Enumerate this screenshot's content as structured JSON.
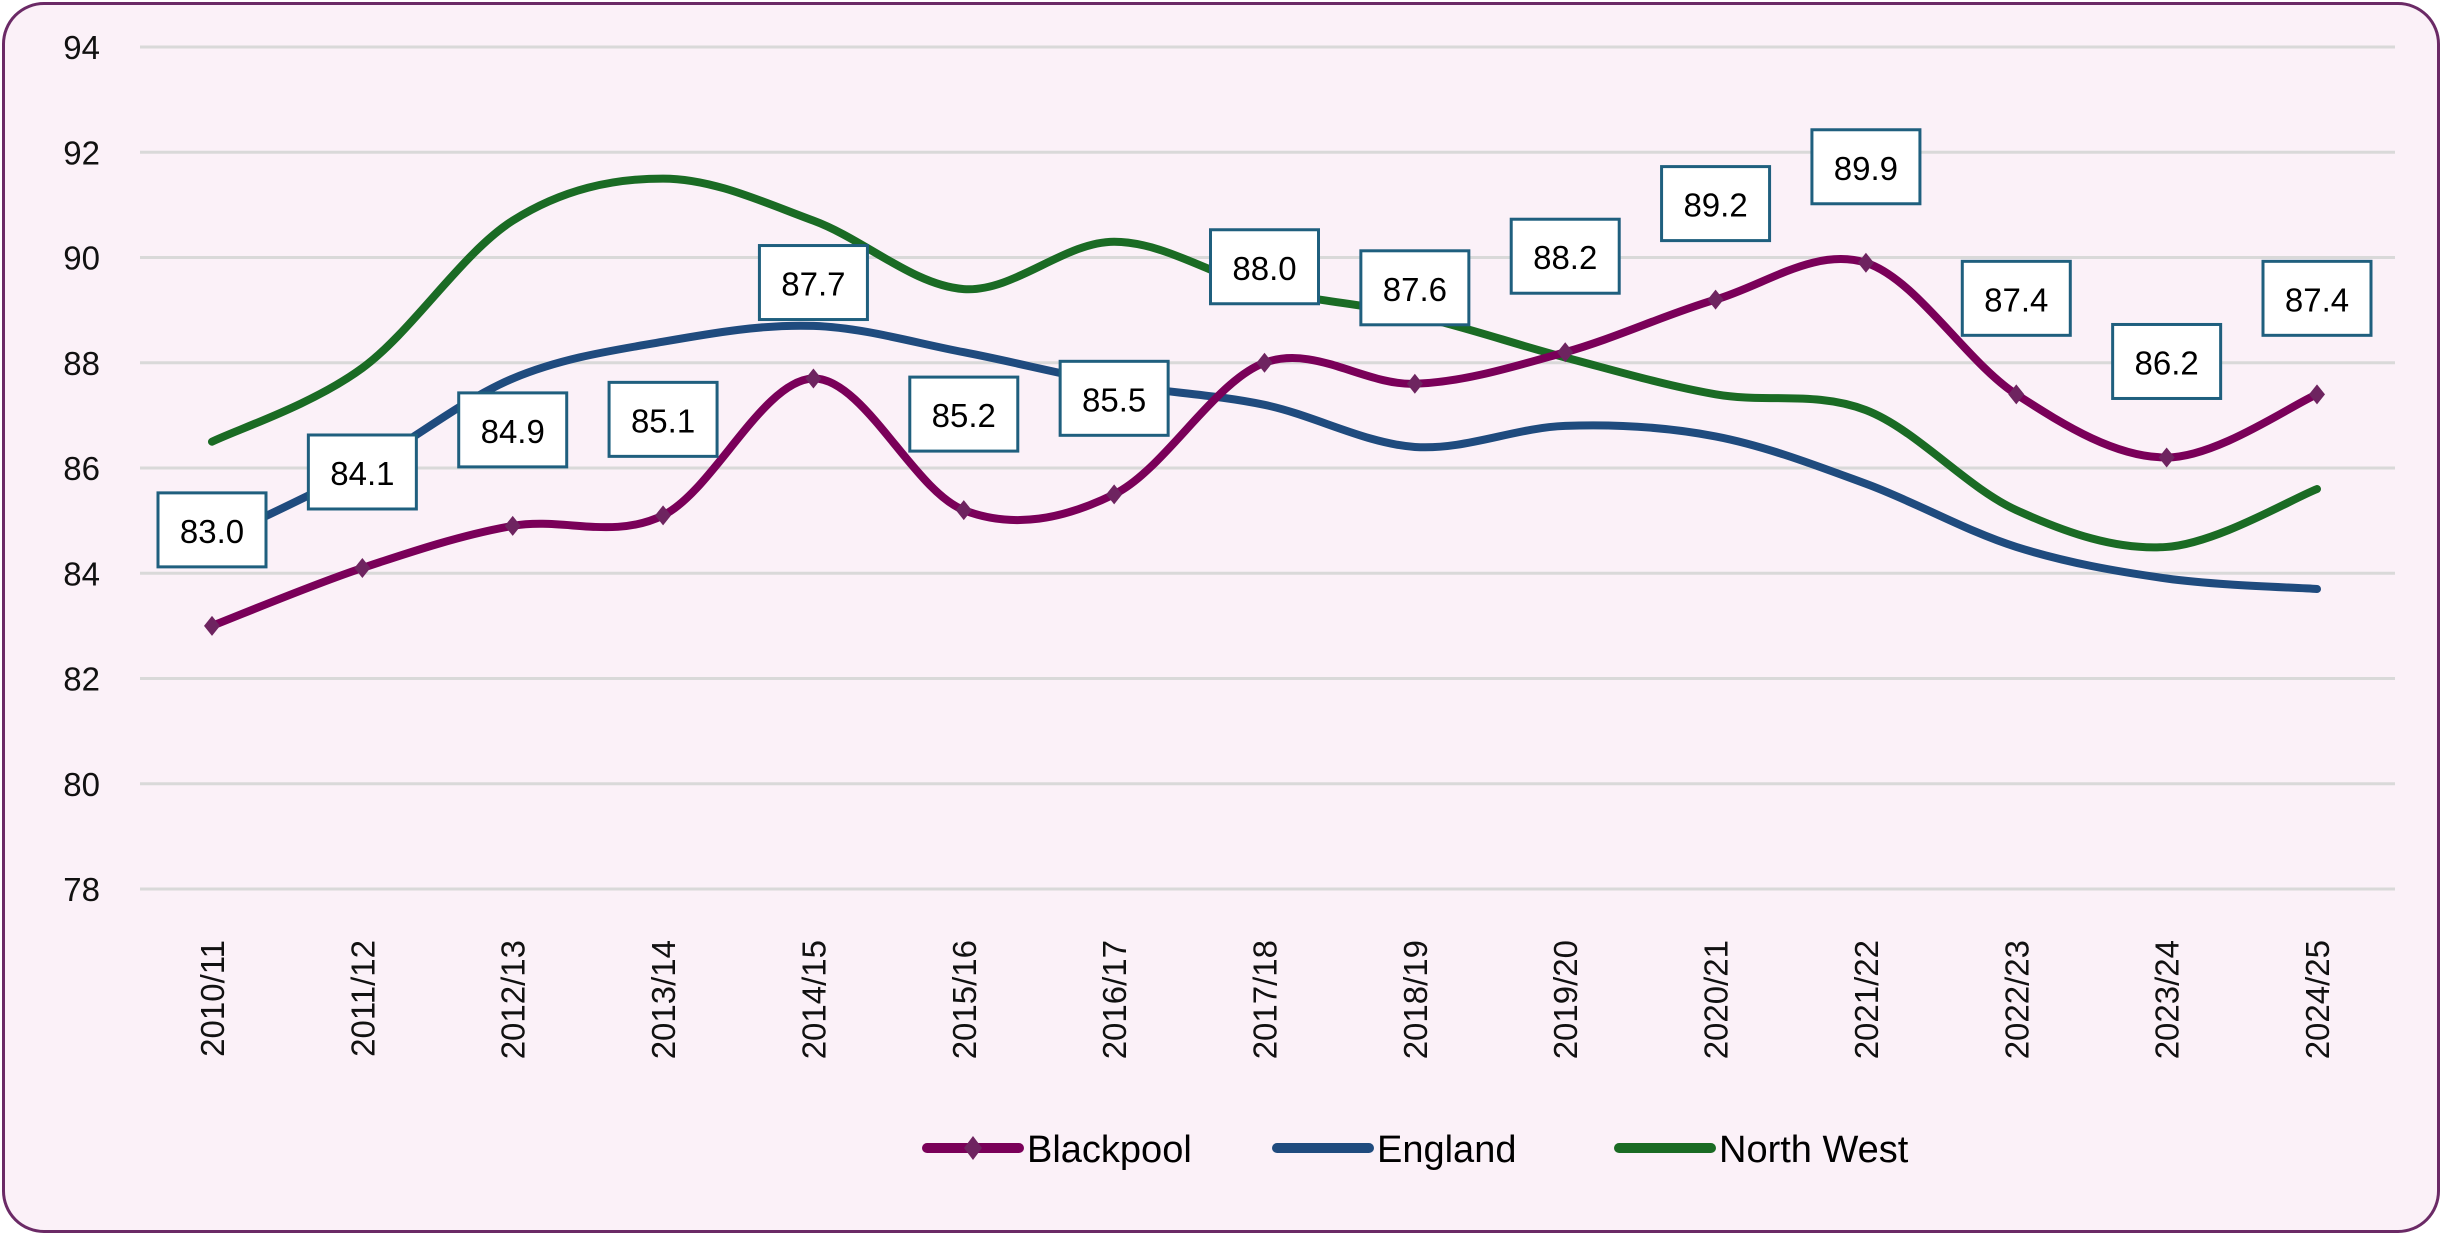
{
  "chart_data": {
    "type": "line",
    "title": "",
    "xlabel": "",
    "ylabel": "",
    "ylim": [
      78,
      94
    ],
    "yticks": [
      78,
      80,
      82,
      84,
      86,
      88,
      90,
      92,
      94
    ],
    "grid": true,
    "smooth": true,
    "legend_position": "bottom",
    "categories": [
      "2010/11",
      "2011/12",
      "2012/13",
      "2013/14",
      "2014/15",
      "2015/16",
      "2016/17",
      "2017/18",
      "2018/19",
      "2019/20",
      "2020/21",
      "2021/22",
      "2022/23",
      "2023/24",
      "2024/25"
    ],
    "series": [
      {
        "name": "Blackpool",
        "color": "#7a0059",
        "marker": "diamond",
        "data_labels": true,
        "values": [
          83.0,
          84.1,
          84.9,
          85.1,
          87.7,
          85.2,
          85.5,
          88.0,
          87.6,
          88.2,
          89.2,
          89.9,
          87.4,
          86.2,
          87.4
        ]
      },
      {
        "name": "England",
        "color": "#1f4b7e",
        "marker": "none",
        "data_labels": false,
        "values": [
          84.6,
          86.0,
          87.7,
          88.4,
          88.7,
          88.2,
          87.6,
          87.2,
          86.4,
          86.8,
          86.6,
          85.7,
          84.5,
          83.9,
          83.7
        ]
      },
      {
        "name": "North West",
        "color": "#1a6b24",
        "marker": "none",
        "data_labels": false,
        "values": [
          86.5,
          87.9,
          90.7,
          91.5,
          90.7,
          89.4,
          90.3,
          89.4,
          88.9,
          88.1,
          87.4,
          87.1,
          85.2,
          84.5,
          85.6
        ]
      }
    ],
    "label_box_border": "#1f5f7e",
    "background": "#fbf1f8",
    "frame_border": "#6b2a66"
  }
}
